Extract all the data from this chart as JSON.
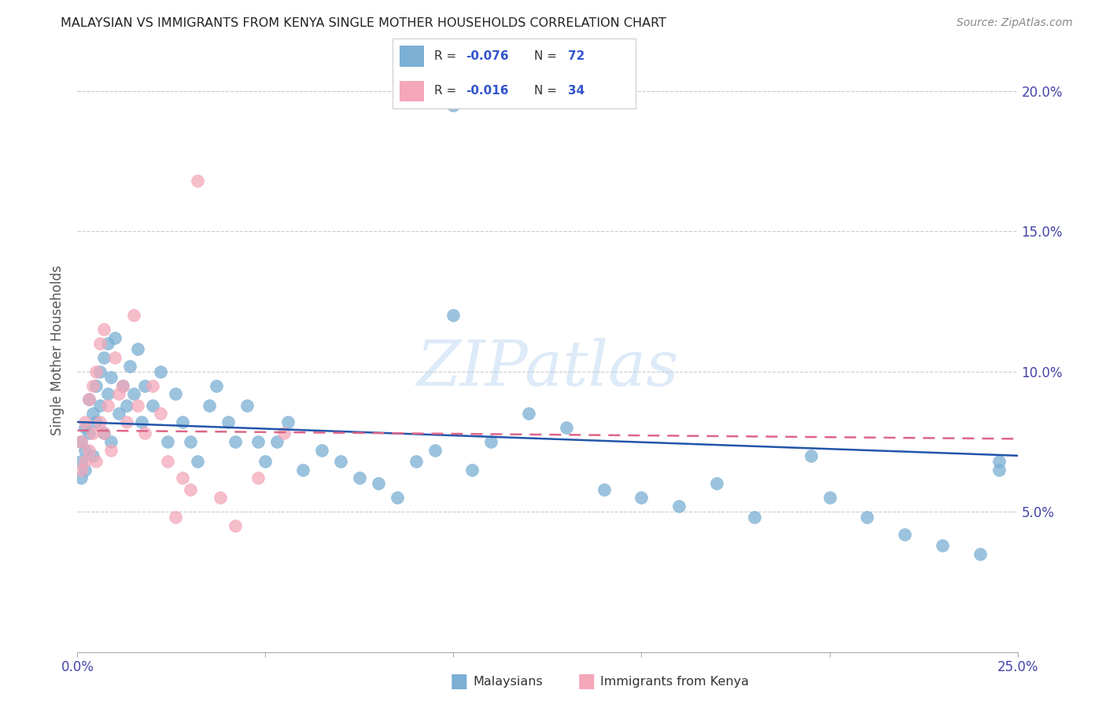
{
  "title": "MALAYSIAN VS IMMIGRANTS FROM KENYA SINGLE MOTHER HOUSEHOLDS CORRELATION CHART",
  "source": "Source: ZipAtlas.com",
  "ylabel": "Single Mother Households",
  "xlim": [
    0.0,
    0.25
  ],
  "ylim": [
    0.0,
    0.215
  ],
  "malaysian_R": -0.076,
  "malaysian_N": 72,
  "kenyan_R": -0.016,
  "kenyan_N": 34,
  "malaysian_color": "#7bafd4",
  "kenyan_color": "#f4a7b9",
  "malaysian_line_color": "#2255aa",
  "kenyan_line_color": "#dd6688",
  "watermark": "ZIPatlas",
  "mal_line_x0": 0.0,
  "mal_line_y0": 0.082,
  "mal_line_x1": 0.25,
  "mal_line_y1": 0.07,
  "ken_line_x0": 0.0,
  "ken_line_y0": 0.079,
  "ken_line_x1": 0.25,
  "ken_line_y1": 0.076,
  "malaysian_x": [
    0.001,
    0.001,
    0.001,
    0.002,
    0.002,
    0.002,
    0.003,
    0.003,
    0.004,
    0.004,
    0.005,
    0.005,
    0.006,
    0.006,
    0.007,
    0.007,
    0.008,
    0.008,
    0.009,
    0.009,
    0.01,
    0.011,
    0.012,
    0.013,
    0.014,
    0.015,
    0.016,
    0.017,
    0.018,
    0.02,
    0.022,
    0.024,
    0.026,
    0.028,
    0.03,
    0.032,
    0.035,
    0.037,
    0.04,
    0.042,
    0.045,
    0.048,
    0.05,
    0.053,
    0.056,
    0.06,
    0.065,
    0.07,
    0.075,
    0.08,
    0.085,
    0.09,
    0.095,
    0.1,
    0.105,
    0.11,
    0.12,
    0.13,
    0.14,
    0.15,
    0.16,
    0.17,
    0.18,
    0.195,
    0.2,
    0.21,
    0.22,
    0.23,
    0.24,
    0.245,
    0.245,
    0.1
  ],
  "malaysian_y": [
    0.075,
    0.068,
    0.062,
    0.08,
    0.072,
    0.065,
    0.09,
    0.078,
    0.085,
    0.07,
    0.095,
    0.082,
    0.1,
    0.088,
    0.105,
    0.078,
    0.11,
    0.092,
    0.098,
    0.075,
    0.112,
    0.085,
    0.095,
    0.088,
    0.102,
    0.092,
    0.108,
    0.082,
    0.095,
    0.088,
    0.1,
    0.075,
    0.092,
    0.082,
    0.075,
    0.068,
    0.088,
    0.095,
    0.082,
    0.075,
    0.088,
    0.075,
    0.068,
    0.075,
    0.082,
    0.065,
    0.072,
    0.068,
    0.062,
    0.06,
    0.055,
    0.068,
    0.072,
    0.12,
    0.065,
    0.075,
    0.085,
    0.08,
    0.058,
    0.055,
    0.052,
    0.06,
    0.048,
    0.07,
    0.055,
    0.048,
    0.042,
    0.038,
    0.035,
    0.068,
    0.065,
    0.195
  ],
  "kenyan_x": [
    0.001,
    0.001,
    0.002,
    0.002,
    0.003,
    0.003,
    0.004,
    0.004,
    0.005,
    0.005,
    0.006,
    0.006,
    0.007,
    0.007,
    0.008,
    0.009,
    0.01,
    0.011,
    0.012,
    0.013,
    0.015,
    0.016,
    0.018,
    0.02,
    0.022,
    0.024,
    0.026,
    0.028,
    0.03,
    0.032,
    0.038,
    0.042,
    0.048,
    0.055
  ],
  "kenyan_y": [
    0.075,
    0.065,
    0.082,
    0.068,
    0.09,
    0.072,
    0.095,
    0.078,
    0.1,
    0.068,
    0.11,
    0.082,
    0.115,
    0.078,
    0.088,
    0.072,
    0.105,
    0.092,
    0.095,
    0.082,
    0.12,
    0.088,
    0.078,
    0.095,
    0.085,
    0.068,
    0.048,
    0.062,
    0.058,
    0.168,
    0.055,
    0.045,
    0.062,
    0.078
  ]
}
